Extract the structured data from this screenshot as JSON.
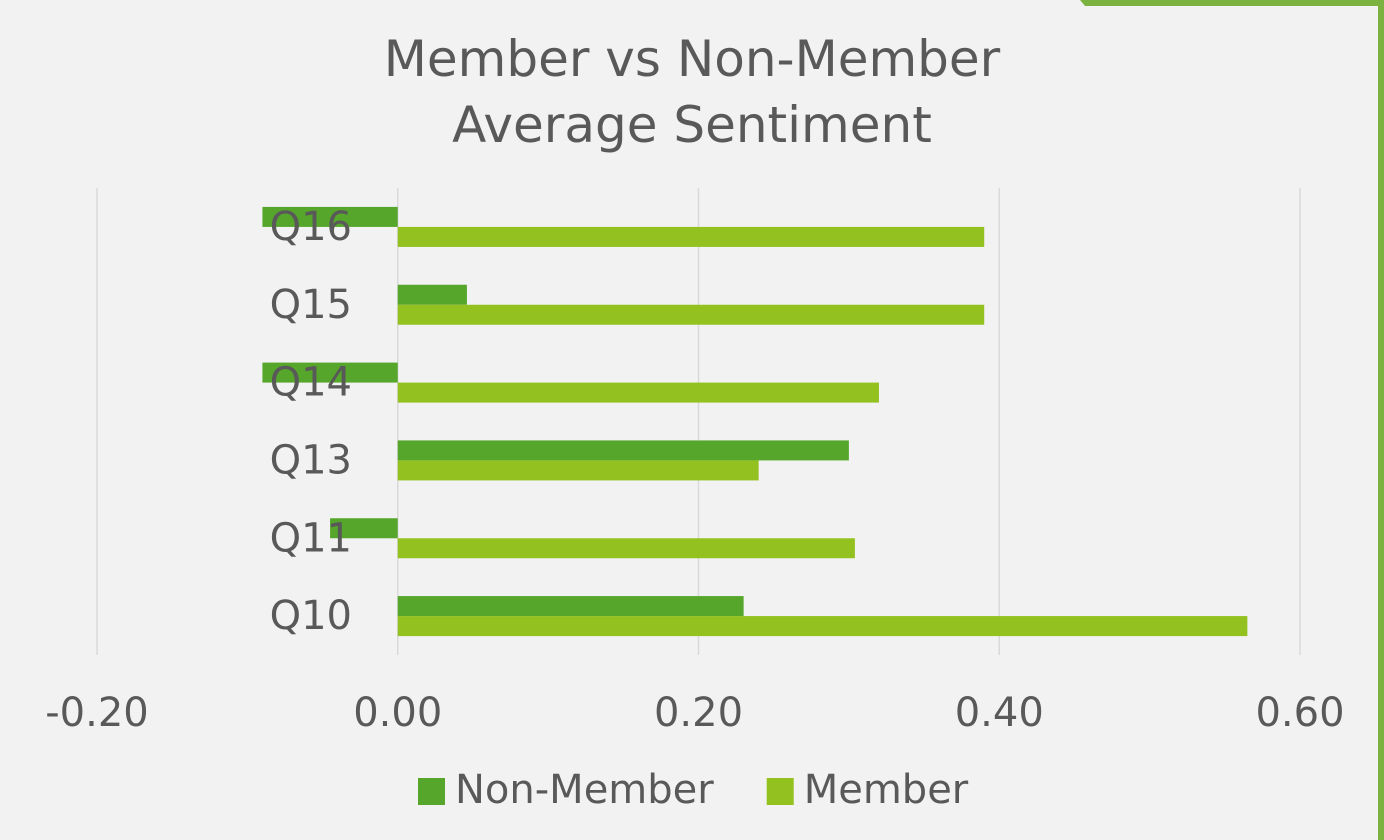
{
  "chart_data": {
    "type": "barh",
    "title": "Member vs Non-Member Average Sentiment",
    "categories": [
      "Q10",
      "Q11",
      "Q13",
      "Q14",
      "Q15",
      "Q16"
    ],
    "series": [
      {
        "name": "Non-Member",
        "color": "#55a62b",
        "values": [
          0.23,
          -0.045,
          0.3,
          -0.09,
          0.046,
          -0.09
        ]
      },
      {
        "name": "Member",
        "color": "#93c11f",
        "values": [
          0.565,
          0.304,
          0.24,
          0.32,
          0.39,
          0.39
        ]
      }
    ],
    "xlim": [
      -0.2,
      0.6
    ],
    "xticks": [
      {
        "value": -0.2,
        "label": "-0.20"
      },
      {
        "value": 0,
        "label": "0.00"
      },
      {
        "value": 0.2,
        "label": "0.20"
      },
      {
        "value": 0.4,
        "label": "0.40"
      },
      {
        "value": 0.6,
        "label": "0.60"
      }
    ],
    "grid": true,
    "legend": "bottom"
  }
}
